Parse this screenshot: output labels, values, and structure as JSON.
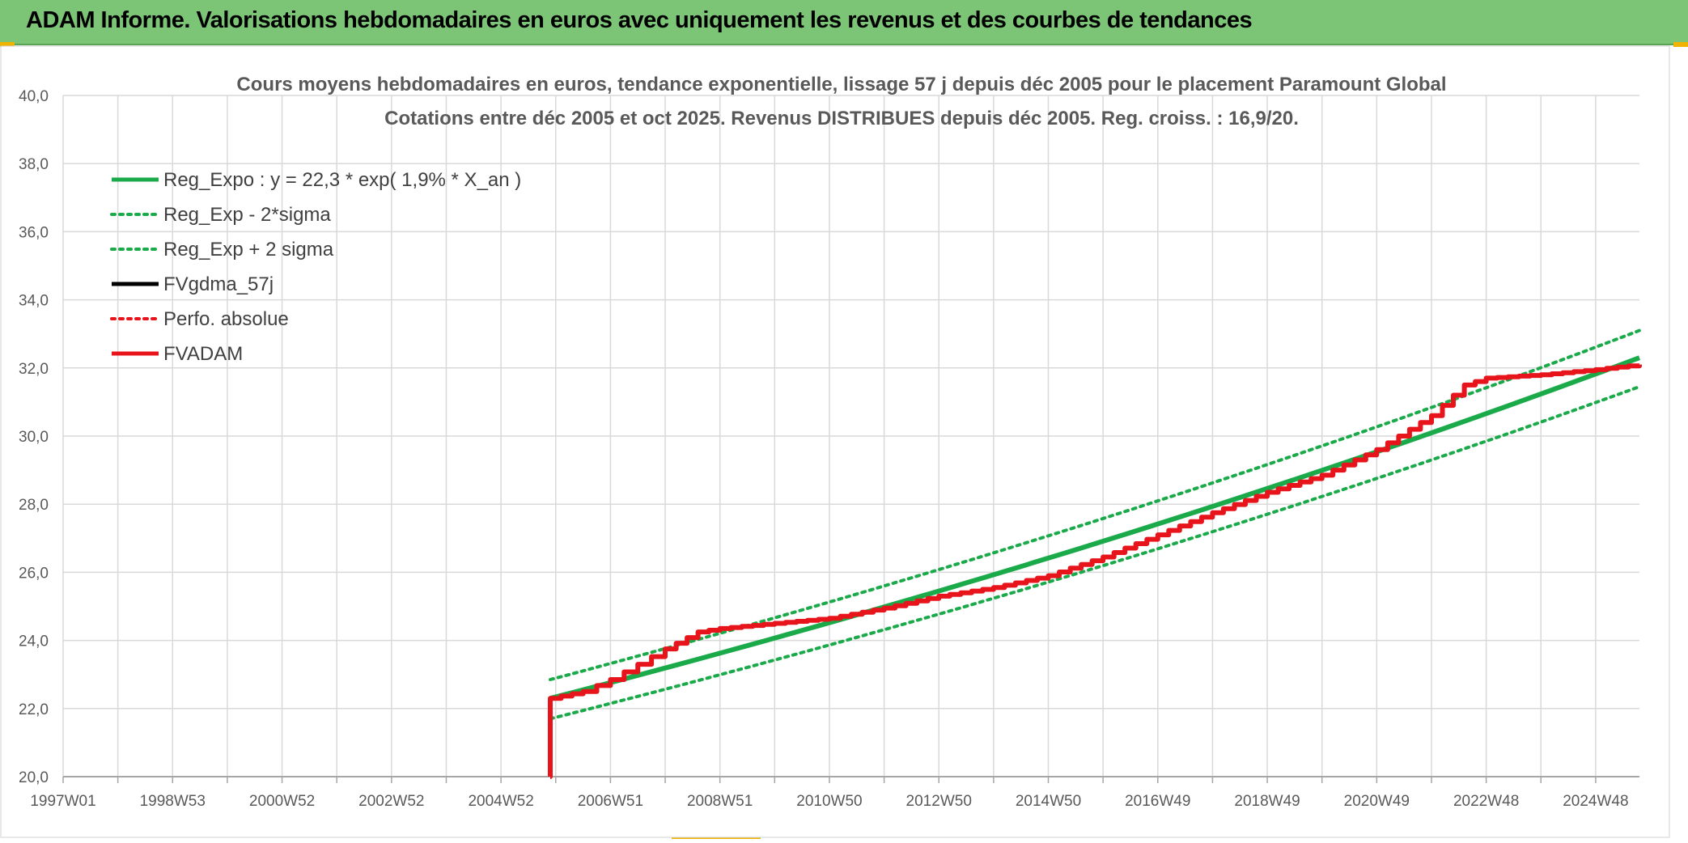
{
  "header": {
    "title": "ADAM Informe. Valorisations hebdomadaires en euros avec uniquement les revenus et des courbes de tendances"
  },
  "colors": {
    "header_bg": "#7cc576",
    "corner": "#f0b400",
    "reg_green": "#1aaa4a",
    "fvadam_red": "#e8141b",
    "grid": "#d9d9d9"
  },
  "chart_data": {
    "type": "line",
    "title": "Cours moyens hebdomadaires en euros, tendance exponentielle, lissage 57 j depuis déc 2005 pour le placement Paramount Global",
    "subtitle": "Cotations entre déc 2005 et oct 2025. Revenus DISTRIBUES depuis déc 2005. Reg. croiss. : 16,9/20.",
    "xlabel": "",
    "ylabel": "",
    "ylim": [
      20,
      40
    ],
    "xlim": [
      1997.0,
      2025.8
    ],
    "yticks": [
      "20,0",
      "22,0",
      "24,0",
      "26,0",
      "28,0",
      "30,0",
      "32,0",
      "34,0",
      "36,0",
      "38,0",
      "40,0"
    ],
    "xticks": [
      {
        "label": "1997W01",
        "x": 1997.0
      },
      {
        "label": "1998W53",
        "x": 1999.0
      },
      {
        "label": "2000W52",
        "x": 2001.0
      },
      {
        "label": "2002W52",
        "x": 2003.0
      },
      {
        "label": "2004W52",
        "x": 2005.0
      },
      {
        "label": "2006W51",
        "x": 2007.0
      },
      {
        "label": "2008W51",
        "x": 2009.0
      },
      {
        "label": "2010W50",
        "x": 2011.0
      },
      {
        "label": "2012W50",
        "x": 2013.0
      },
      {
        "label": "2014W50",
        "x": 2015.0
      },
      {
        "label": "2016W49",
        "x": 2017.0
      },
      {
        "label": "2018W49",
        "x": 2019.0
      },
      {
        "label": "2020W49",
        "x": 2021.0
      },
      {
        "label": "2022W48",
        "x": 2023.0
      },
      {
        "label": "2024W48",
        "x": 2025.0
      }
    ],
    "legend_placement": "top-left",
    "grid": true,
    "series": [
      {
        "name": "Reg_Expo : y = 22,3 * exp( 1,9% *  X_an )",
        "color": "#1aaa4a",
        "style": "solid",
        "width": 6,
        "x": [
          2005.9,
          2025.8
        ],
        "y": [
          22.3,
          32.3
        ]
      },
      {
        "name": "Reg_Exp - 2*sigma",
        "color": "#1aaa4a",
        "style": "dotted",
        "width": 4,
        "x": [
          2005.9,
          2025.8
        ],
        "y": [
          21.7,
          31.45
        ]
      },
      {
        "name": "Reg_Exp + 2 sigma",
        "color": "#1aaa4a",
        "style": "dotted",
        "width": 4,
        "x": [
          2005.9,
          2025.8
        ],
        "y": [
          22.85,
          33.1
        ]
      },
      {
        "name": "FVgdma_57j",
        "color": "#000000",
        "style": "solid",
        "width": 4,
        "x": [],
        "y": []
      },
      {
        "name": "Perfo. absolue",
        "color": "#e8141b",
        "style": "dotted",
        "width": 3,
        "x": [],
        "y": []
      },
      {
        "name": "FVADAM",
        "color": "#e8141b",
        "style": "solid",
        "width": 6,
        "x": [
          2005.9,
          2005.9,
          2006.5,
          2007.0,
          2007.5,
          2008.0,
          2008.6,
          2009.0,
          2010.0,
          2011.0,
          2012.0,
          2013.0,
          2014.0,
          2015.0,
          2016.0,
          2017.0,
          2018.0,
          2019.0,
          2020.0,
          2021.0,
          2022.0,
          2022.6,
          2023.0,
          2024.0,
          2025.0,
          2025.8
        ],
        "y": [
          20.0,
          22.3,
          22.5,
          22.85,
          23.3,
          23.75,
          24.25,
          24.35,
          24.5,
          24.65,
          24.95,
          25.3,
          25.55,
          25.9,
          26.45,
          27.1,
          27.75,
          28.35,
          28.85,
          29.6,
          30.6,
          31.5,
          31.7,
          31.8,
          31.95,
          32.1
        ]
      }
    ]
  }
}
